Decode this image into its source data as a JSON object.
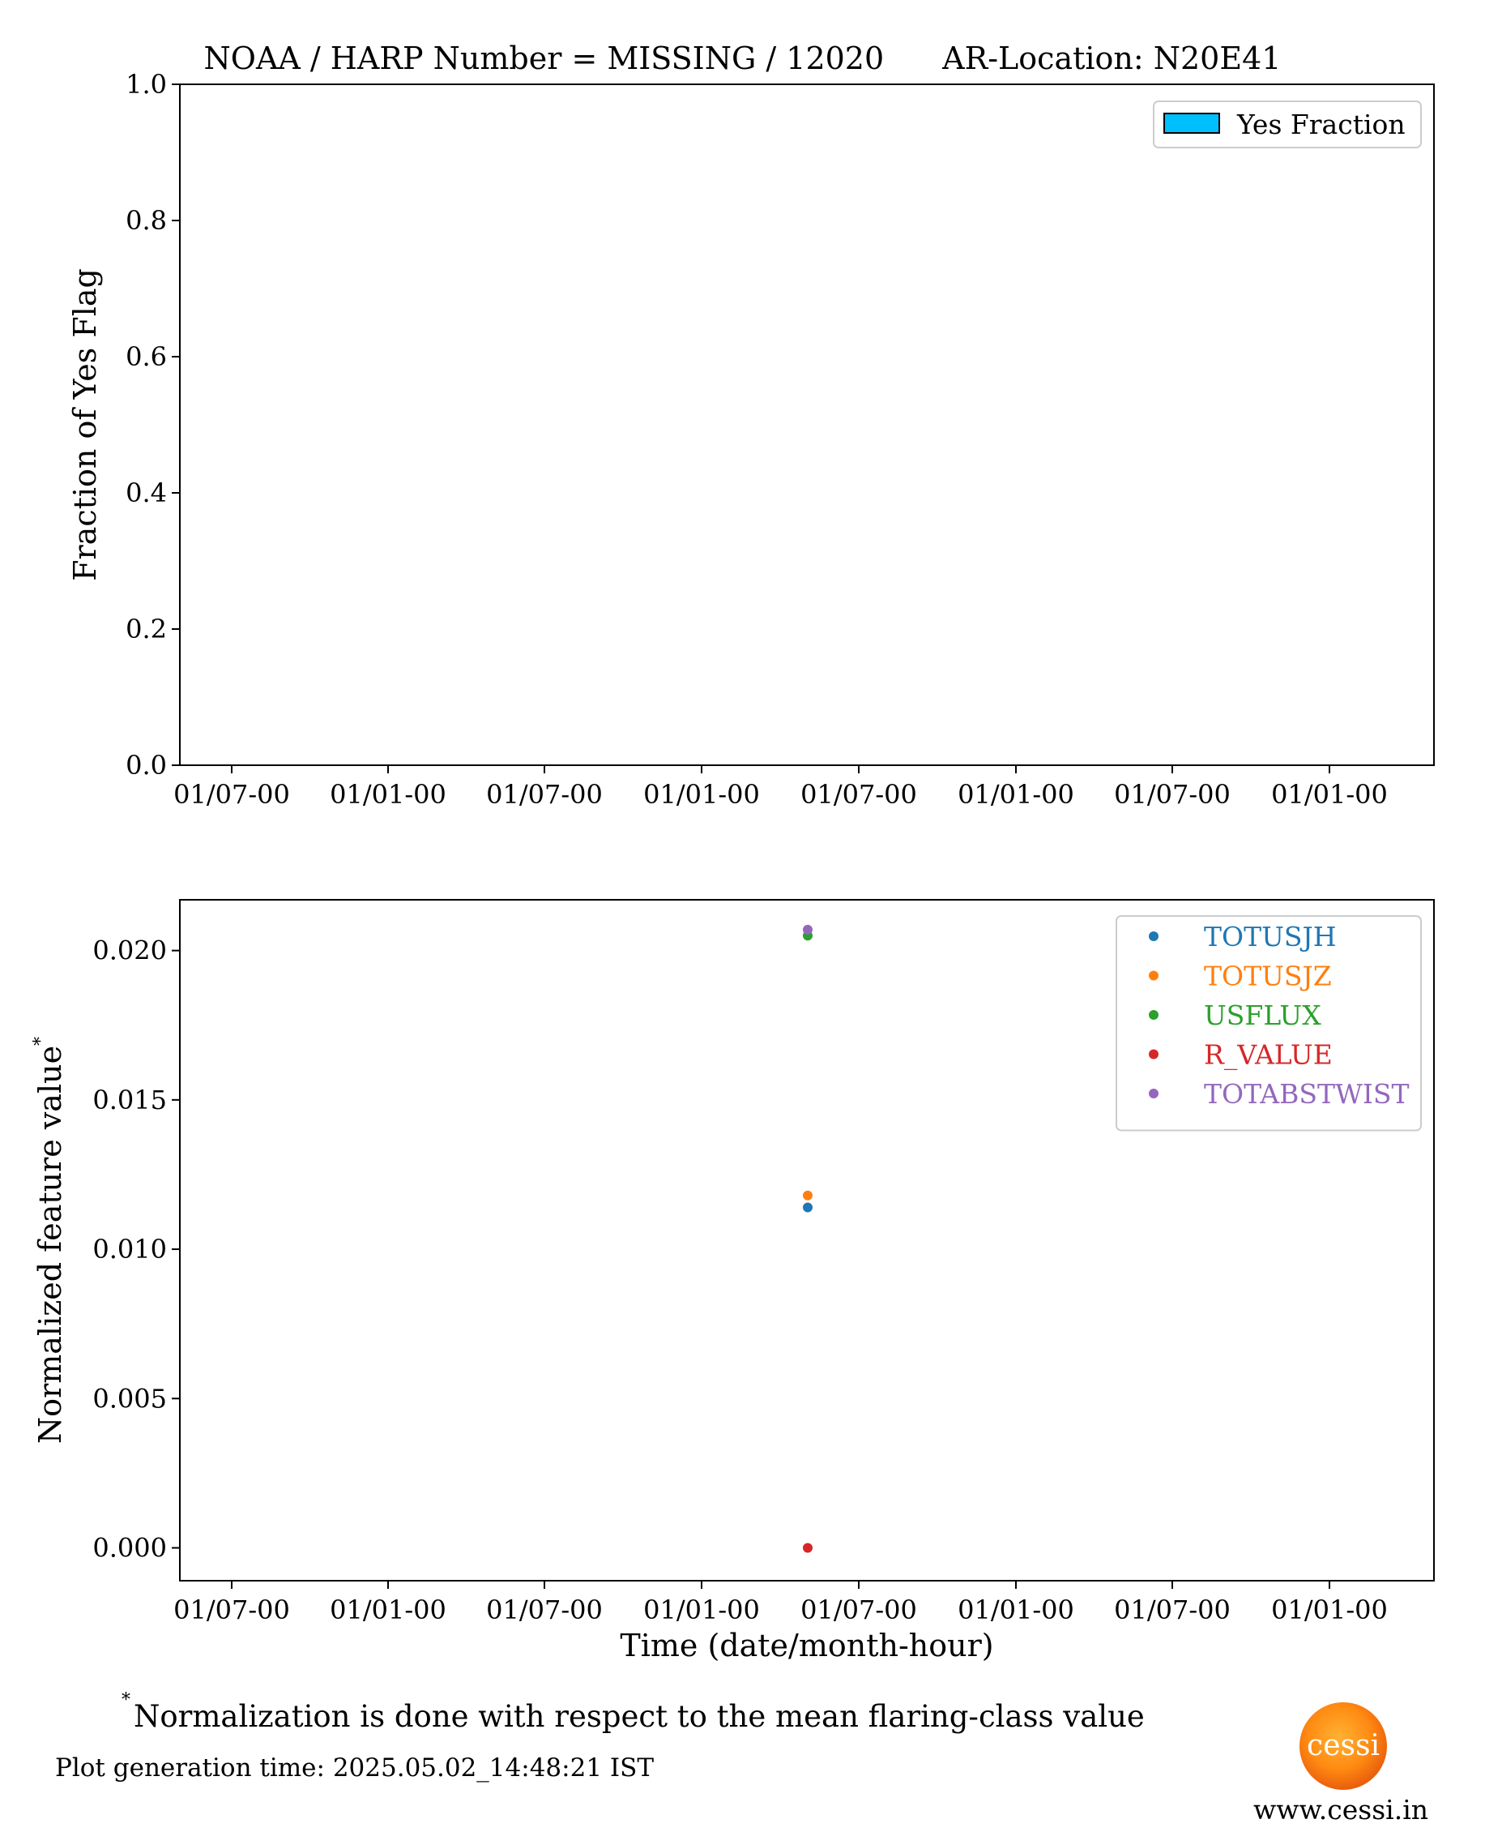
{
  "title": {
    "left": "NOAA / HARP Number = MISSING / 12020",
    "right": "AR-Location: N20E41"
  },
  "chart_data": [
    {
      "type": "bar",
      "ylabel": "Fraction of Yes Flag",
      "xlabel": "",
      "ylim": [
        0,
        1.0
      ],
      "yticks": [
        "0.0",
        "0.2",
        "0.4",
        "0.6",
        "0.8",
        "1.0"
      ],
      "xtick_labels": [
        "01/07-00",
        "01/01-00",
        "01/07-00",
        "01/01-00",
        "01/07-00",
        "01/01-00",
        "01/07-00",
        "01/01-00"
      ],
      "legend_position": "top-right",
      "series": [
        {
          "name": "Yes Fraction",
          "color": "#00bfff",
          "values": []
        }
      ]
    },
    {
      "type": "scatter",
      "ylabel": "Normalized feature value",
      "ylabel_suffix": "*",
      "xlabel": "Time (date/month-hour)",
      "ylim": [
        -0.0011,
        0.0217
      ],
      "yticks": [
        "0.000",
        "0.005",
        "0.010",
        "0.015",
        "0.020"
      ],
      "xtick_labels": [
        "01/07-00",
        "01/01-00",
        "01/07-00",
        "01/01-00",
        "01/07-00",
        "01/01-00",
        "01/07-00",
        "01/01-00"
      ],
      "legend_position": "top-right",
      "series": [
        {
          "name": "TOTUSJH",
          "color": "#1f77b4",
          "points": [
            {
              "x": "01/05-00",
              "y": 0.0114
            }
          ]
        },
        {
          "name": "TOTUSJZ",
          "color": "#ff7f0e",
          "points": [
            {
              "x": "01/05-00",
              "y": 0.0118
            }
          ]
        },
        {
          "name": "USFLUX",
          "color": "#2ca02c",
          "points": [
            {
              "x": "01/05-00",
              "y": 0.0205
            }
          ]
        },
        {
          "name": "R_VALUE",
          "color": "#d62728",
          "points": [
            {
              "x": "01/05-00",
              "y": 0.0
            }
          ]
        },
        {
          "name": "TOTABSTWIST",
          "color": "#9467bd",
          "points": [
            {
              "x": "01/05-00",
              "y": 0.0207
            }
          ]
        }
      ]
    }
  ],
  "footnote": {
    "marker": "*",
    "text": "Normalization is done with respect to the mean flaring-class value"
  },
  "generation_time": "Plot generation time: 2025.05.02_14:48:21 IST",
  "logo": {
    "text": "cessi",
    "url_text": "www.cessi.in"
  }
}
